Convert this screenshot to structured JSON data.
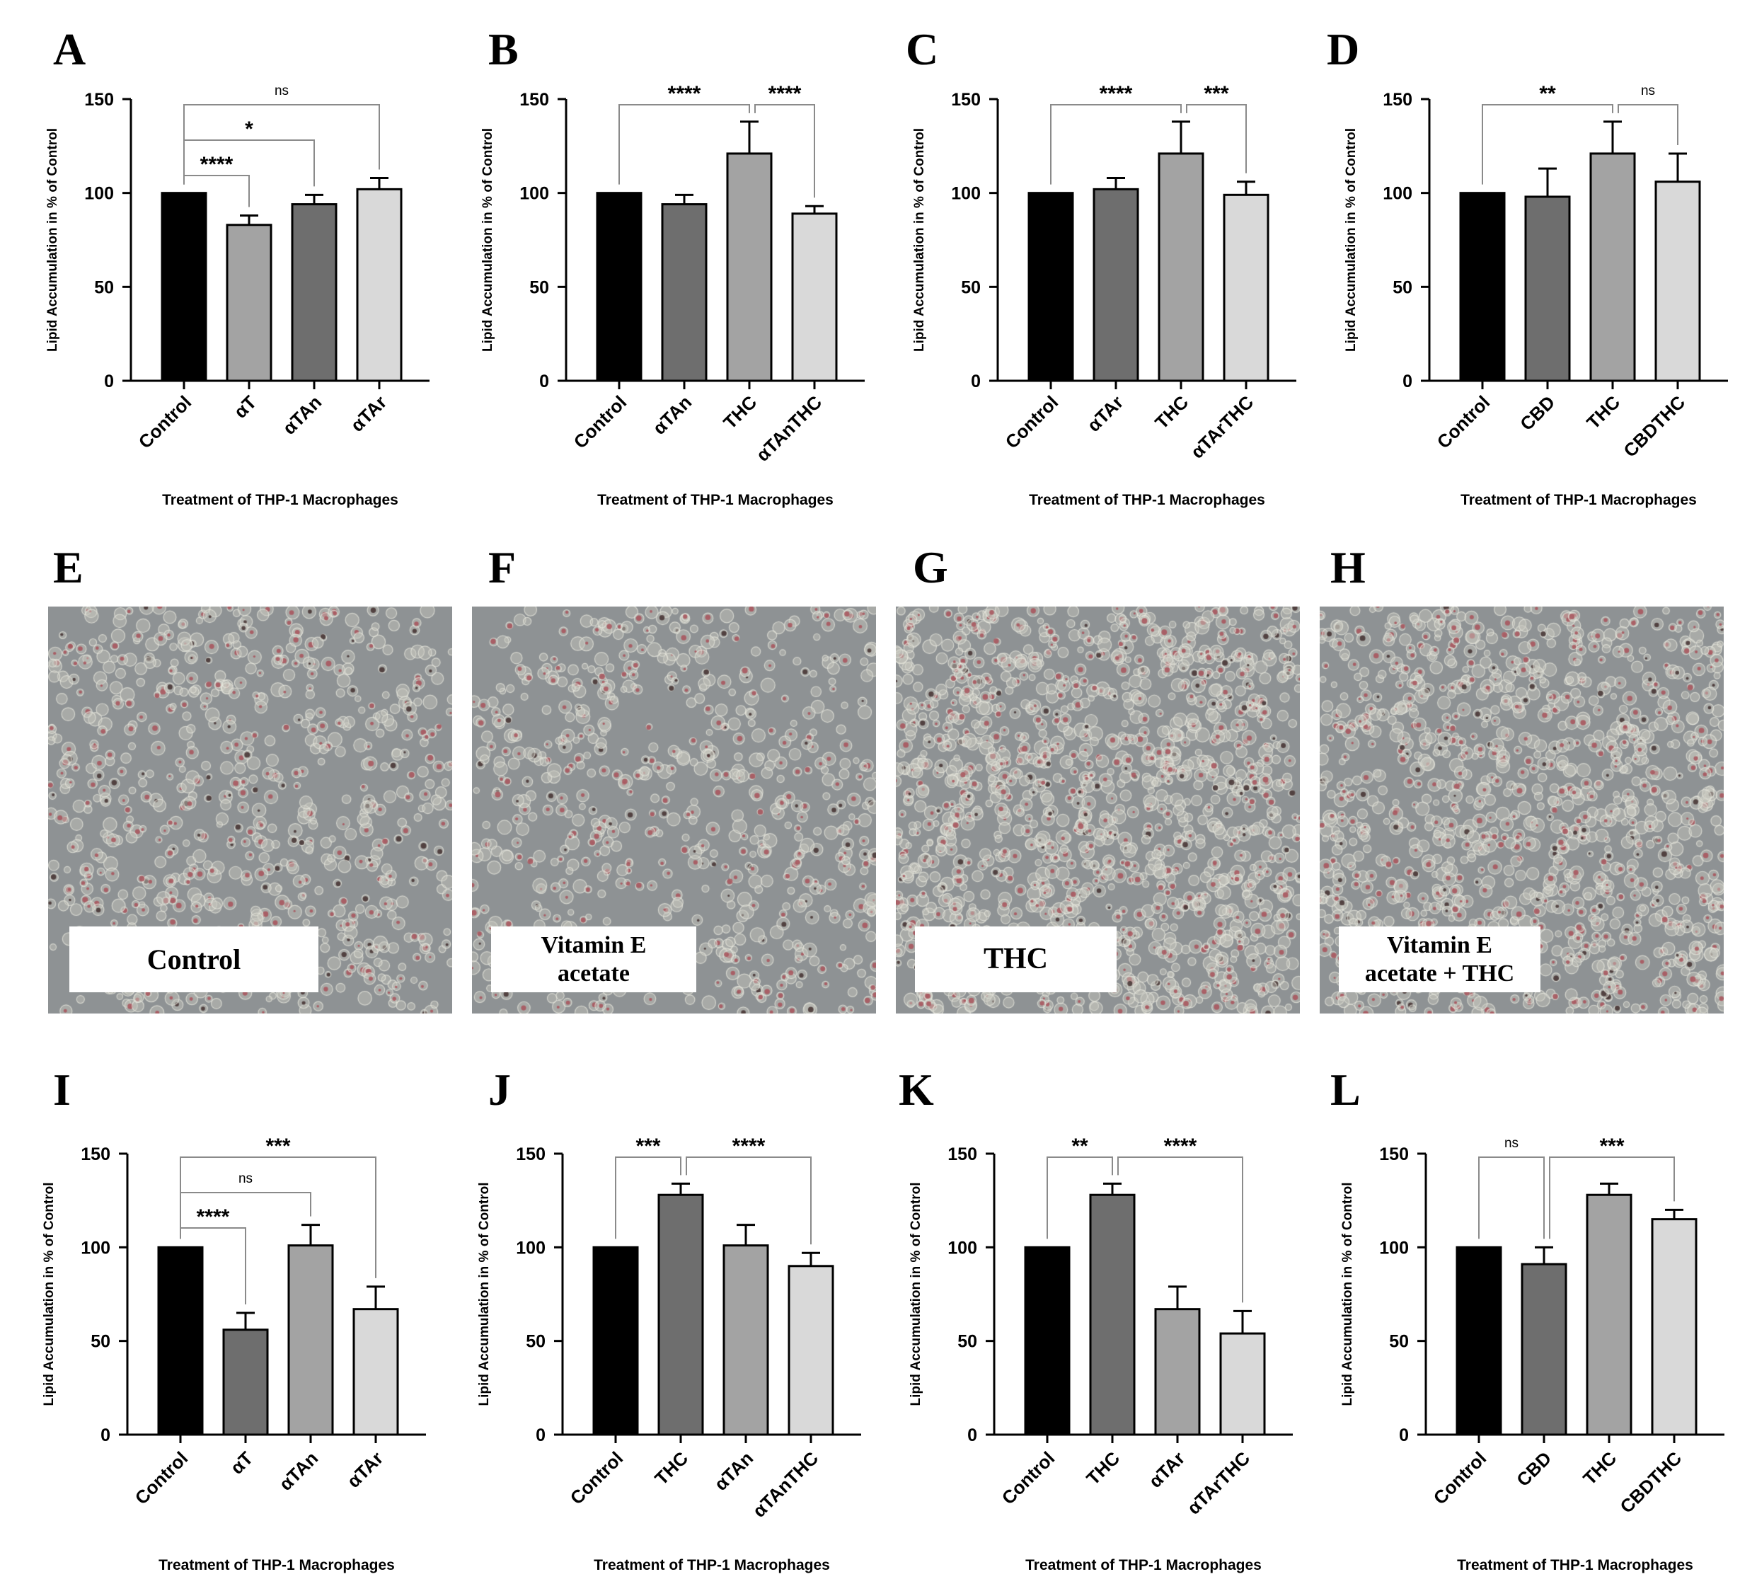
{
  "colors": {
    "black": "#000000",
    "dark_gray": "#6e6e6e",
    "mid_gray": "#a3a3a3",
    "light_gray": "#d9d9d9",
    "micrograph_bg": "#8e9294",
    "stain_red": "#a8525a"
  },
  "panels_top": [
    {
      "letter": "A"
    },
    {
      "letter": "B"
    },
    {
      "letter": "C"
    },
    {
      "letter": "D"
    }
  ],
  "panels_middle": [
    {
      "letter": "E",
      "label": "Control"
    },
    {
      "letter": "F",
      "label": "Vitamin E acetate",
      "label_lines": [
        "Vitamin E",
        "acetate"
      ]
    },
    {
      "letter": "G",
      "label": "THC"
    },
    {
      "letter": "H",
      "label": "Vitamin E acetate + THC",
      "label_lines": [
        "Vitamin E",
        "acetate + THC"
      ]
    }
  ],
  "panels_bottom": [
    {
      "letter": "I"
    },
    {
      "letter": "J"
    },
    {
      "letter": "K"
    },
    {
      "letter": "L"
    }
  ],
  "chart_data": [
    {
      "panel": "A",
      "type": "bar",
      "ylabel": "Lipid Accumulation in % of Control",
      "xlabel": "Treatment of THP-1 Macrophages",
      "ylim": [
        0,
        150
      ],
      "yticks": [
        0,
        50,
        100,
        150
      ],
      "categories": [
        "Control",
        "αT",
        "αTAn",
        "αTAr"
      ],
      "values": [
        100,
        83,
        94,
        102
      ],
      "errors": [
        0,
        5,
        5,
        6
      ],
      "bar_colors": [
        "black",
        "mid_gray",
        "dark_gray",
        "light_gray"
      ],
      "significance": [
        {
          "from": 0,
          "to": 1,
          "label": "****"
        },
        {
          "from": 0,
          "to": 2,
          "label": "*"
        },
        {
          "from": 0,
          "to": 3,
          "label": "ns"
        }
      ]
    },
    {
      "panel": "B",
      "type": "bar",
      "ylabel": "Lipid Accumulation in % of Control",
      "xlabel": "Treatment of THP-1 Macrophages",
      "ylim": [
        0,
        150
      ],
      "yticks": [
        0,
        50,
        100,
        150
      ],
      "categories": [
        "Control",
        "αTAn",
        "THC",
        "αTAnTHC"
      ],
      "values": [
        100,
        94,
        121,
        89
      ],
      "errors": [
        0,
        5,
        17,
        4
      ],
      "bar_colors": [
        "black",
        "dark_gray",
        "mid_gray",
        "light_gray"
      ],
      "significance": [
        {
          "from": 0,
          "to": 2,
          "label": "****"
        },
        {
          "from": 2,
          "to": 3,
          "label": "****"
        }
      ]
    },
    {
      "panel": "C",
      "type": "bar",
      "ylabel": "Lipid Accumulation in % of Control",
      "xlabel": "Treatment of THP-1 Macrophages",
      "ylim": [
        0,
        150
      ],
      "yticks": [
        0,
        50,
        100,
        150
      ],
      "categories": [
        "Control",
        "αTAr",
        "THC",
        "αTArTHC"
      ],
      "values": [
        100,
        102,
        121,
        99
      ],
      "errors": [
        0,
        6,
        17,
        7
      ],
      "bar_colors": [
        "black",
        "dark_gray",
        "mid_gray",
        "light_gray"
      ],
      "significance": [
        {
          "from": 0,
          "to": 2,
          "label": "****"
        },
        {
          "from": 2,
          "to": 3,
          "label": "***"
        }
      ]
    },
    {
      "panel": "D",
      "type": "bar",
      "ylabel": "Lipid Accumulation in % of Control",
      "xlabel": "Treatment of THP-1 Macrophages",
      "ylim": [
        0,
        150
      ],
      "yticks": [
        0,
        50,
        100,
        150
      ],
      "categories": [
        "Control",
        "CBD",
        "THC",
        "CBDTHC"
      ],
      "values": [
        100,
        98,
        121,
        106
      ],
      "errors": [
        0,
        15,
        17,
        15
      ],
      "bar_colors": [
        "black",
        "dark_gray",
        "mid_gray",
        "light_gray"
      ],
      "significance": [
        {
          "from": 0,
          "to": 2,
          "label": "**"
        },
        {
          "from": 2,
          "to": 3,
          "label": "ns"
        }
      ]
    },
    {
      "panel": "I",
      "type": "bar",
      "ylabel": "Lipid Accumulation in % of Control",
      "xlabel": "Treatment of THP-1 Macrophages",
      "ylim": [
        0,
        150
      ],
      "yticks": [
        0,
        50,
        100,
        150
      ],
      "categories": [
        "Control",
        "αT",
        "αTAn",
        "αTAr"
      ],
      "values": [
        100,
        56,
        101,
        67
      ],
      "errors": [
        0,
        9,
        11,
        12
      ],
      "bar_colors": [
        "black",
        "dark_gray",
        "mid_gray",
        "light_gray"
      ],
      "significance": [
        {
          "from": 0,
          "to": 1,
          "label": "****"
        },
        {
          "from": 0,
          "to": 2,
          "label": "ns"
        },
        {
          "from": 0,
          "to": 3,
          "label": "***"
        }
      ]
    },
    {
      "panel": "J",
      "type": "bar",
      "ylabel": "Lipid Accumulation in % of Control",
      "xlabel": "Treatment of THP-1 Macrophages",
      "ylim": [
        0,
        150
      ],
      "yticks": [
        0,
        50,
        100,
        150
      ],
      "categories": [
        "Control",
        "THC",
        "αTAn",
        "αTAnTHC"
      ],
      "values": [
        100,
        128,
        101,
        90
      ],
      "errors": [
        0,
        6,
        11,
        7
      ],
      "bar_colors": [
        "black",
        "dark_gray",
        "mid_gray",
        "light_gray"
      ],
      "significance": [
        {
          "from": 0,
          "to": 1,
          "label": "***"
        },
        {
          "from": 1,
          "to": 3,
          "label": "****"
        }
      ]
    },
    {
      "panel": "K",
      "type": "bar",
      "ylabel": "Lipid Accumulation in % of Control",
      "xlabel": "Treatment of THP-1 Macrophages",
      "ylim": [
        0,
        150
      ],
      "yticks": [
        0,
        50,
        100,
        150
      ],
      "categories": [
        "Control",
        "THC",
        "αTAr",
        "αTArTHC"
      ],
      "values": [
        100,
        128,
        67,
        54
      ],
      "errors": [
        0,
        6,
        12,
        12
      ],
      "bar_colors": [
        "black",
        "dark_gray",
        "mid_gray",
        "light_gray"
      ],
      "significance": [
        {
          "from": 0,
          "to": 1,
          "label": "**"
        },
        {
          "from": 1,
          "to": 3,
          "label": "****"
        }
      ]
    },
    {
      "panel": "L",
      "type": "bar",
      "ylabel": "Lipid Accumulation in % of Control",
      "xlabel": "Treatment of THP-1 Macrophages",
      "ylim": [
        0,
        150
      ],
      "yticks": [
        0,
        50,
        100,
        150
      ],
      "categories": [
        "Control",
        "CBD",
        "THC",
        "CBDTHC"
      ],
      "values": [
        100,
        91,
        128,
        115
      ],
      "errors": [
        0,
        9,
        6,
        5
      ],
      "bar_colors": [
        "black",
        "dark_gray",
        "mid_gray",
        "light_gray"
      ],
      "significance": [
        {
          "from": 0,
          "to": 1,
          "label": "ns"
        },
        {
          "from": 1,
          "to": 3,
          "label": "***"
        }
      ]
    }
  ]
}
